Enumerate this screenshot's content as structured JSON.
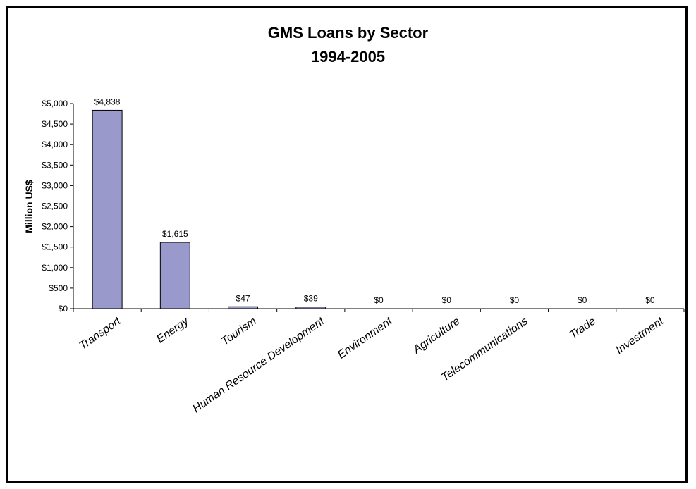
{
  "chart_data": {
    "type": "bar",
    "title": "GMS Loans by Sector",
    "subtitle": "1994-2005",
    "ylabel": "Million US$",
    "xlabel": "",
    "ylim": [
      0,
      5000
    ],
    "y_ticks": [
      0,
      500,
      1000,
      1500,
      2000,
      2500,
      3000,
      3500,
      4000,
      4500,
      5000
    ],
    "y_tick_labels": [
      "$0",
      "$500",
      "$1,000",
      "$1,500",
      "$2,000",
      "$2,500",
      "$3,000",
      "$3,500",
      "$4,000",
      "$4,500",
      "$5,000"
    ],
    "categories": [
      "Transport",
      "Energy",
      "Tourism",
      "Human Resource Development",
      "Environment",
      "Agriculture",
      "Telecommunications",
      "Trade",
      "Investment"
    ],
    "values": [
      4838,
      1615,
      47,
      39,
      0,
      0,
      0,
      0,
      0
    ],
    "data_labels": [
      "$4,838",
      "$1,615",
      "$47",
      "$39",
      "$0",
      "$0",
      "$0",
      "$0",
      "$0"
    ],
    "bar_color": "#9999cc",
    "grid": false,
    "legend": "none"
  }
}
